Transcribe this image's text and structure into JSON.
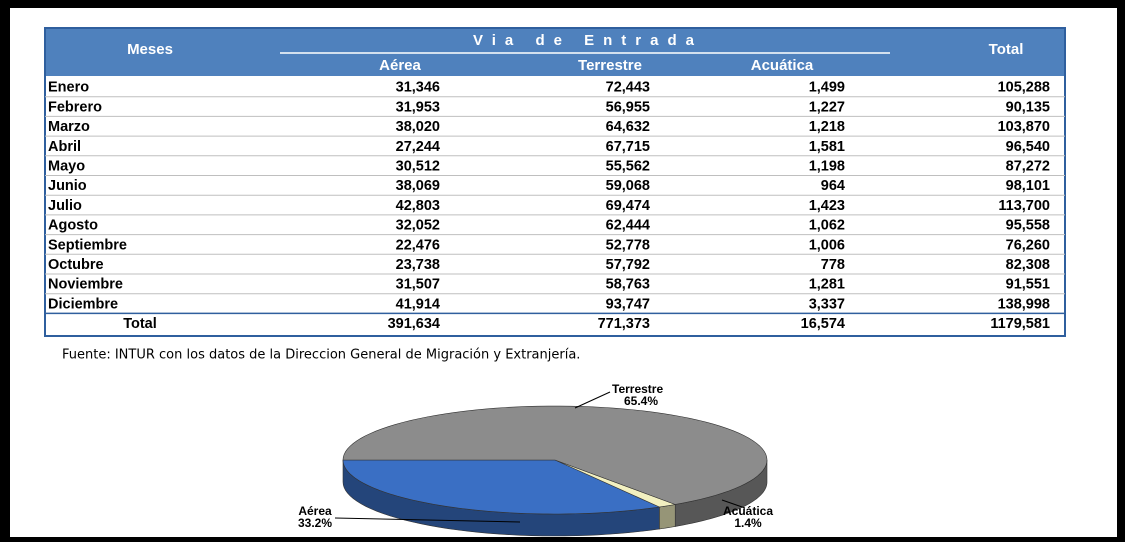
{
  "table": {
    "header": {
      "month": "Meses",
      "group": "Via de Entrada",
      "columns": [
        "Aérea",
        "Terrestre",
        "Acuática"
      ],
      "total": "Total"
    },
    "rows": [
      [
        "Enero",
        "31,346",
        "72,443",
        "1,499",
        "105,288"
      ],
      [
        "Febrero",
        "31,953",
        "56,955",
        "1,227",
        "90,135"
      ],
      [
        "Marzo",
        "38,020",
        "64,632",
        "1,218",
        "103,870"
      ],
      [
        "Abril",
        "27,244",
        "67,715",
        "1,581",
        "96,540"
      ],
      [
        "Mayo",
        "30,512",
        "55,562",
        "1,198",
        "87,272"
      ],
      [
        "Junio",
        "38,069",
        "59,068",
        "964",
        "98,101"
      ],
      [
        "Julio",
        "42,803",
        "69,474",
        "1,423",
        "113,700"
      ],
      [
        "Agosto",
        "32,052",
        "62,444",
        "1,062",
        "95,558"
      ],
      [
        "Septiembre",
        "22,476",
        "52,778",
        "1,006",
        "76,260"
      ],
      [
        "Octubre",
        "23,738",
        "57,792",
        "778",
        "82,308"
      ],
      [
        "Noviembre",
        "31,507",
        "58,763",
        "1,281",
        "91,551"
      ],
      [
        "Diciembre",
        "41,914",
        "93,747",
        "3,337",
        "138,998"
      ]
    ],
    "total_row": [
      "Total",
      "391,634",
      "771,373",
      "16,574",
      "1179,581"
    ]
  },
  "source": "Fuente:  INTUR con los datos de la Direccion General de Migración y Extranjería.",
  "chart_data": {
    "type": "pie",
    "categories": [
      "Aérea",
      "Acuática",
      "Terrestre"
    ],
    "values": [
      33.2,
      1.4,
      65.4
    ],
    "value_labels": [
      "33.2%",
      "1.4%",
      "65.4%"
    ],
    "colors": [
      "#3a6fc4",
      "#f2f0c0",
      "#8c8c8c"
    ]
  }
}
